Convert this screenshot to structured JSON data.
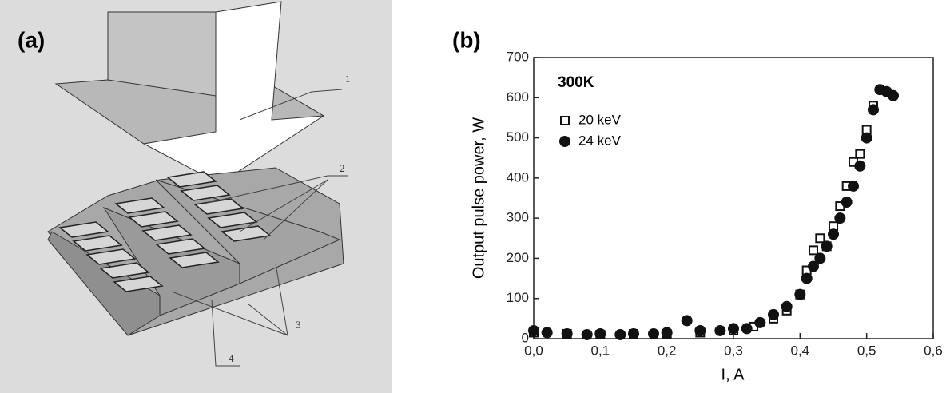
{
  "panel_a": {
    "label": "(a)",
    "callouts": [
      "1",
      "2",
      "3",
      "4"
    ]
  },
  "chart_data": {
    "type": "scatter",
    "panel_label": "(b)",
    "annotation": "300K",
    "x_label": "I, A",
    "y_label": "Output pulse power, W",
    "xlim": [
      0,
      0.6
    ],
    "ylim": [
      0,
      700
    ],
    "xticks": [
      {
        "value": 0,
        "label": "0,0"
      },
      {
        "value": 0.1,
        "label": "0,1"
      },
      {
        "value": 0.2,
        "label": "0,2"
      },
      {
        "value": 0.3,
        "label": "0,3"
      },
      {
        "value": 0.4,
        "label": "0,4"
      },
      {
        "value": 0.5,
        "label": "0,5"
      },
      {
        "value": 0.6,
        "label": "0,6"
      }
    ],
    "yticks": [
      0,
      100,
      200,
      300,
      400,
      500,
      600,
      700
    ],
    "series": [
      {
        "name": "20 keV",
        "color": "#111111",
        "marker": "square-open",
        "x": [
          0,
          0.05,
          0.1,
          0.15,
          0.2,
          0.25,
          0.3,
          0.33,
          0.36,
          0.38,
          0.4,
          0.41,
          0.42,
          0.43,
          0.44,
          0.45,
          0.46,
          0.47,
          0.48,
          0.49,
          0.5,
          0.51
        ],
        "values": [
          15,
          12,
          10,
          12,
          12,
          15,
          20,
          30,
          50,
          70,
          110,
          170,
          220,
          250,
          230,
          280,
          330,
          380,
          440,
          460,
          520,
          580
        ]
      },
      {
        "name": "24 keV",
        "color": "#111111",
        "marker": "circle-filled",
        "x": [
          0,
          0.02,
          0.05,
          0.08,
          0.1,
          0.13,
          0.15,
          0.18,
          0.2,
          0.23,
          0.25,
          0.28,
          0.3,
          0.32,
          0.34,
          0.36,
          0.38,
          0.4,
          0.41,
          0.42,
          0.43,
          0.44,
          0.45,
          0.46,
          0.47,
          0.48,
          0.49,
          0.5,
          0.51,
          0.52,
          0.53,
          0.54
        ],
        "values": [
          20,
          15,
          12,
          10,
          12,
          10,
          12,
          12,
          15,
          45,
          20,
          20,
          25,
          25,
          40,
          60,
          80,
          110,
          150,
          180,
          200,
          230,
          260,
          300,
          340,
          380,
          430,
          500,
          570,
          620,
          615,
          605
        ]
      }
    ]
  }
}
